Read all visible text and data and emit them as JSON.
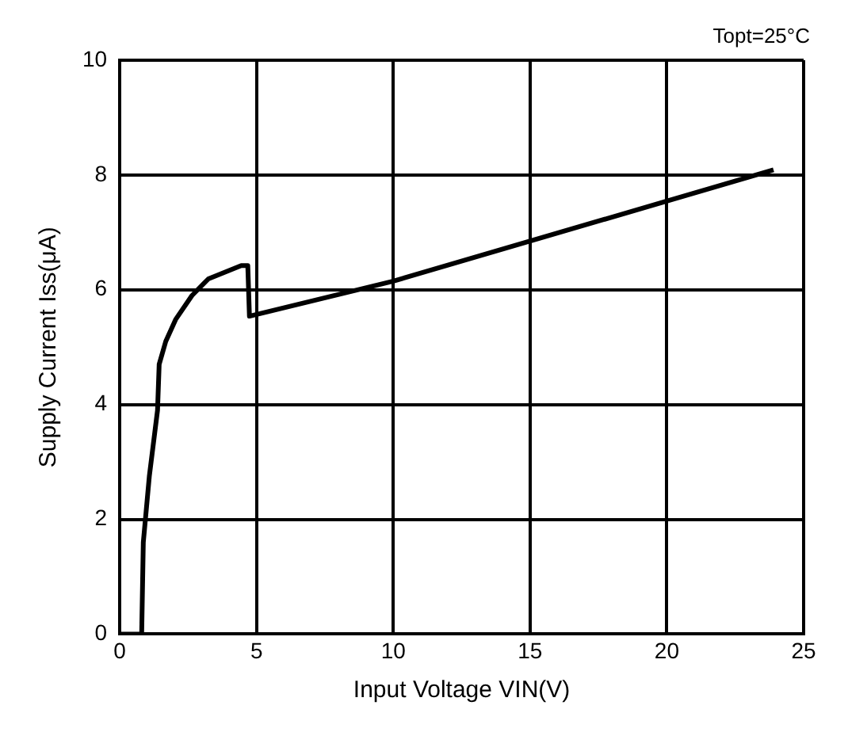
{
  "chart_data": {
    "type": "line",
    "xlabel": "Input Voltage VIN(V)",
    "ylabel": "Supply Current Iss(μA)",
    "annotations": [
      "Topt=25°C"
    ],
    "series": [
      {
        "color": "#000000",
        "x": [
          0,
          0.8,
          0.86,
          1.08,
          1.38,
          1.44,
          1.68,
          2.04,
          2.64,
          3.24,
          4.44,
          4.68,
          4.74,
          10,
          23.9
        ],
        "values": [
          0,
          0,
          1.6,
          2.75,
          3.9,
          4.7,
          5.1,
          5.48,
          5.9,
          6.19,
          6.42,
          6.42,
          5.54,
          6.15,
          8.09
        ]
      }
    ],
    "xlim": [
      0,
      25
    ],
    "xticks": [
      0,
      5,
      10,
      15,
      20,
      25
    ],
    "ylim": [
      0,
      10
    ],
    "yticks": [
      0,
      2,
      4,
      6,
      8,
      10
    ],
    "grid": true,
    "legend": false,
    "marker": "none",
    "line_style": "solid"
  }
}
